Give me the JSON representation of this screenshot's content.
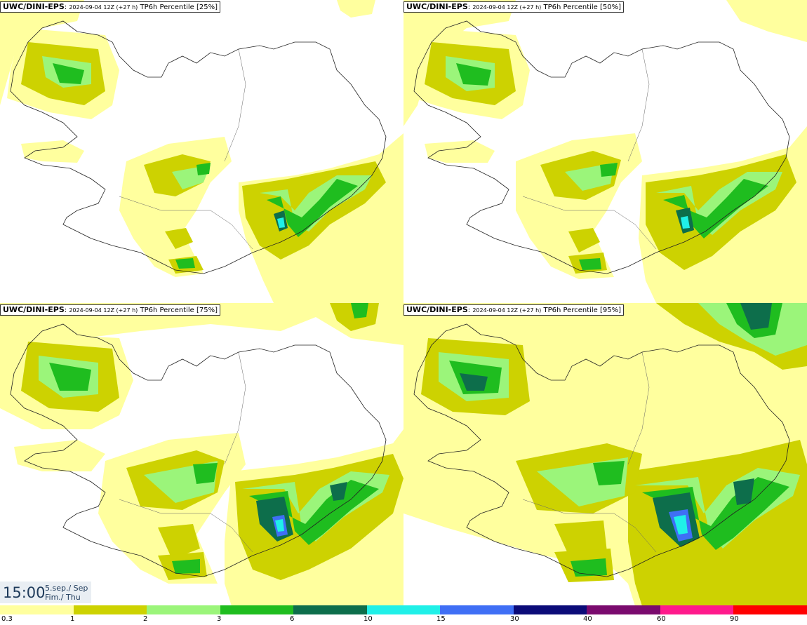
{
  "panels": [
    {
      "model": "UWC/DINI-EPS",
      "run": "2024-09-04 12Z (+27 h)",
      "title": "TP6h Percentile [25%]"
    },
    {
      "model": "UWC/DINI-EPS",
      "run": "2024-09-04 12Z (+27 h)",
      "title": "TP6h Percentile [50%]"
    },
    {
      "model": "UWC/DINI-EPS",
      "run": "2024-09-04 12Z (+27 h)",
      "title": "TP6h Percentile [75%]"
    },
    {
      "model": "UWC/DINI-EPS",
      "run": "2024-09-04 12Z (+27 h)",
      "title": "TP6h Percentile [95%]"
    }
  ],
  "valid_time": {
    "time": "15:00",
    "date_line1": "5.sep./ Sep",
    "date_line2": "Fim./ Thu"
  },
  "legend": {
    "labels": [
      "0.3",
      "1",
      "2",
      "3",
      "6",
      "10",
      "15",
      "30",
      "40",
      "60",
      "90"
    ],
    "colors": [
      "#ffff9e",
      "#cdd201",
      "#9bf57a",
      "#1fbd1f",
      "#0d6e4b",
      "#20f0e8",
      "#3f6ff5",
      "#0b0b78",
      "#7a0a6e",
      "#ff1a8c",
      "#ff0000"
    ]
  },
  "precip_colors": {
    "l1": "#ffff9e",
    "l2": "#cdd201",
    "l3": "#9bf57a",
    "l4": "#1fbd1f",
    "l5": "#0d6e4b",
    "l6": "#20f0e8",
    "l7": "#3f6ff5"
  }
}
